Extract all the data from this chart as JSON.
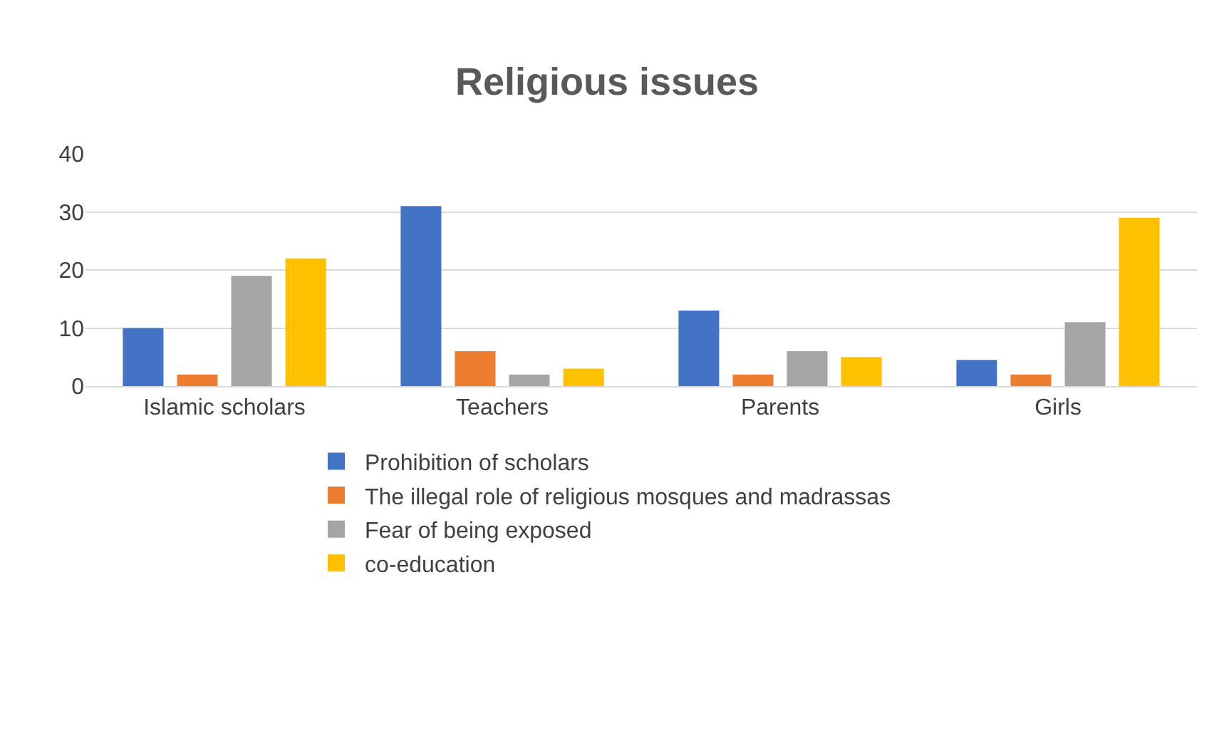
{
  "chart_data": {
    "type": "bar",
    "title": "Religious issues",
    "categories": [
      "Islamic scholars",
      "Teachers",
      "Parents",
      "Girls"
    ],
    "series": [
      {
        "name": "Prohibition of scholars",
        "color": "#4472c4",
        "values": [
          10,
          31,
          13,
          4.5
        ]
      },
      {
        "name": "The illegal role of religious mosques and madrassas",
        "color": "#ed7d31",
        "values": [
          2,
          6,
          2,
          2
        ]
      },
      {
        "name": "Fear of being exposed",
        "color": "#a5a5a5",
        "values": [
          19,
          2,
          6,
          11
        ]
      },
      {
        "name": "co-education",
        "color": "#ffc000",
        "values": [
          22,
          3,
          5,
          29
        ]
      }
    ],
    "ylim": [
      0,
      40
    ],
    "yticks": [
      0,
      10,
      20,
      30,
      40
    ],
    "grid": "y",
    "legend": "bottom"
  }
}
